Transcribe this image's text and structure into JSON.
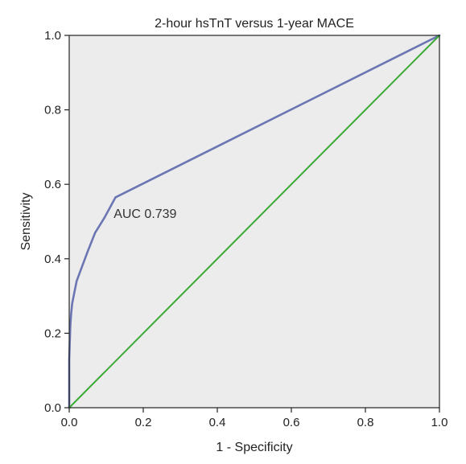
{
  "chart_data": {
    "type": "line",
    "title": "2-hour hsTnT versus 1-year MACE",
    "xlabel": "1 - Specificity",
    "ylabel": "Sensitivity",
    "xlim": [
      0.0,
      1.0
    ],
    "ylim": [
      0.0,
      1.0
    ],
    "x_ticks": [
      "0.0",
      "0.2",
      "0.4",
      "0.6",
      "0.8",
      "1.0"
    ],
    "y_ticks": [
      "0.0",
      "0.2",
      "0.4",
      "0.6",
      "0.8",
      "1.0"
    ],
    "grid": false,
    "annotations": [
      {
        "text": "AUC 0.739",
        "x": 0.12,
        "y": 0.51
      }
    ],
    "series": [
      {
        "color": "#6b76b3",
        "x": [
          0.0,
          0.0,
          0.003,
          0.005,
          0.008,
          0.012,
          0.02,
          0.035,
          0.05,
          0.07,
          0.095,
          0.125,
          1.0
        ],
        "y": [
          0.0,
          0.13,
          0.22,
          0.25,
          0.28,
          0.3,
          0.34,
          0.38,
          0.42,
          0.47,
          0.51,
          0.565,
          1.0
        ]
      },
      {
        "color": "#3aaa35",
        "x": [
          0.0,
          1.0
        ],
        "y": [
          0.0,
          1.0
        ]
      }
    ],
    "colors": {
      "plot_background": "#ececec",
      "frame": "#222222"
    }
  }
}
